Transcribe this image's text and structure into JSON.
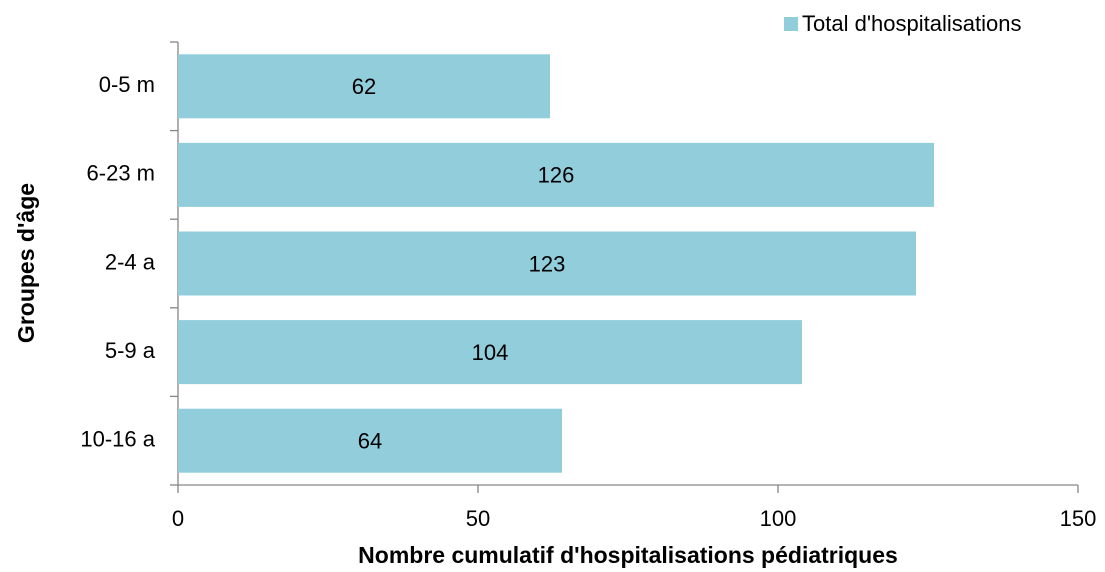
{
  "chart_data": {
    "type": "bar",
    "orientation": "horizontal",
    "categories": [
      "0-5 m",
      "6-23 m",
      "2-4 a",
      "5-9 a",
      "10-16 a"
    ],
    "series": [
      {
        "name": "Total d'hospitalisations",
        "color": "#92cddc",
        "values": [
          62,
          126,
          123,
          104,
          64
        ]
      }
    ],
    "xlim": [
      0,
      150
    ],
    "xticks": [
      0,
      50,
      100,
      150
    ],
    "x_label": "Nombre cumulatif  d'hospitalisations  pédiatriques",
    "y_label": "Groupes d'âge",
    "legend": "top-right",
    "grid": false
  }
}
